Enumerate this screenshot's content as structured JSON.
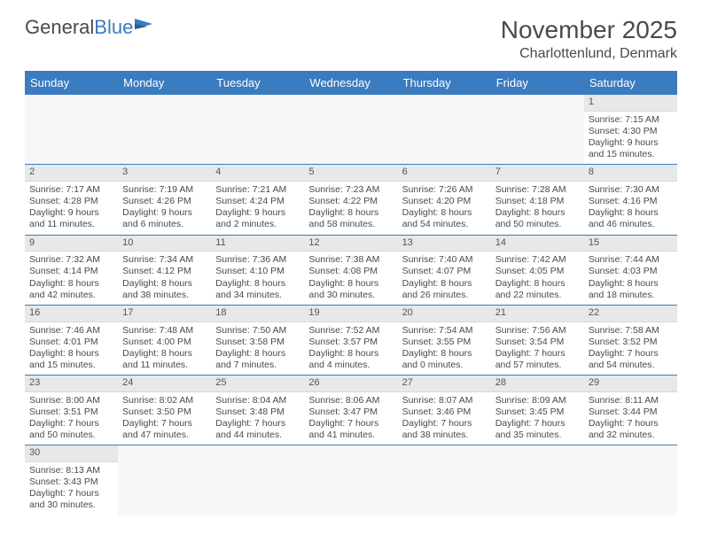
{
  "logo": {
    "text1": "General",
    "text2": "Blue"
  },
  "title": "November 2025",
  "location": "Charlottenlund, Denmark",
  "header_bg": "#3b7bbf",
  "day_names": [
    "Sunday",
    "Monday",
    "Tuesday",
    "Wednesday",
    "Thursday",
    "Friday",
    "Saturday"
  ],
  "weeks": [
    [
      null,
      null,
      null,
      null,
      null,
      null,
      {
        "n": "1",
        "sr": "Sunrise: 7:15 AM",
        "ss": "Sunset: 4:30 PM",
        "d1": "Daylight: 9 hours",
        "d2": "and 15 minutes."
      }
    ],
    [
      {
        "n": "2",
        "sr": "Sunrise: 7:17 AM",
        "ss": "Sunset: 4:28 PM",
        "d1": "Daylight: 9 hours",
        "d2": "and 11 minutes."
      },
      {
        "n": "3",
        "sr": "Sunrise: 7:19 AM",
        "ss": "Sunset: 4:26 PM",
        "d1": "Daylight: 9 hours",
        "d2": "and 6 minutes."
      },
      {
        "n": "4",
        "sr": "Sunrise: 7:21 AM",
        "ss": "Sunset: 4:24 PM",
        "d1": "Daylight: 9 hours",
        "d2": "and 2 minutes."
      },
      {
        "n": "5",
        "sr": "Sunrise: 7:23 AM",
        "ss": "Sunset: 4:22 PM",
        "d1": "Daylight: 8 hours",
        "d2": "and 58 minutes."
      },
      {
        "n": "6",
        "sr": "Sunrise: 7:26 AM",
        "ss": "Sunset: 4:20 PM",
        "d1": "Daylight: 8 hours",
        "d2": "and 54 minutes."
      },
      {
        "n": "7",
        "sr": "Sunrise: 7:28 AM",
        "ss": "Sunset: 4:18 PM",
        "d1": "Daylight: 8 hours",
        "d2": "and 50 minutes."
      },
      {
        "n": "8",
        "sr": "Sunrise: 7:30 AM",
        "ss": "Sunset: 4:16 PM",
        "d1": "Daylight: 8 hours",
        "d2": "and 46 minutes."
      }
    ],
    [
      {
        "n": "9",
        "sr": "Sunrise: 7:32 AM",
        "ss": "Sunset: 4:14 PM",
        "d1": "Daylight: 8 hours",
        "d2": "and 42 minutes."
      },
      {
        "n": "10",
        "sr": "Sunrise: 7:34 AM",
        "ss": "Sunset: 4:12 PM",
        "d1": "Daylight: 8 hours",
        "d2": "and 38 minutes."
      },
      {
        "n": "11",
        "sr": "Sunrise: 7:36 AM",
        "ss": "Sunset: 4:10 PM",
        "d1": "Daylight: 8 hours",
        "d2": "and 34 minutes."
      },
      {
        "n": "12",
        "sr": "Sunrise: 7:38 AM",
        "ss": "Sunset: 4:08 PM",
        "d1": "Daylight: 8 hours",
        "d2": "and 30 minutes."
      },
      {
        "n": "13",
        "sr": "Sunrise: 7:40 AM",
        "ss": "Sunset: 4:07 PM",
        "d1": "Daylight: 8 hours",
        "d2": "and 26 minutes."
      },
      {
        "n": "14",
        "sr": "Sunrise: 7:42 AM",
        "ss": "Sunset: 4:05 PM",
        "d1": "Daylight: 8 hours",
        "d2": "and 22 minutes."
      },
      {
        "n": "15",
        "sr": "Sunrise: 7:44 AM",
        "ss": "Sunset: 4:03 PM",
        "d1": "Daylight: 8 hours",
        "d2": "and 18 minutes."
      }
    ],
    [
      {
        "n": "16",
        "sr": "Sunrise: 7:46 AM",
        "ss": "Sunset: 4:01 PM",
        "d1": "Daylight: 8 hours",
        "d2": "and 15 minutes."
      },
      {
        "n": "17",
        "sr": "Sunrise: 7:48 AM",
        "ss": "Sunset: 4:00 PM",
        "d1": "Daylight: 8 hours",
        "d2": "and 11 minutes."
      },
      {
        "n": "18",
        "sr": "Sunrise: 7:50 AM",
        "ss": "Sunset: 3:58 PM",
        "d1": "Daylight: 8 hours",
        "d2": "and 7 minutes."
      },
      {
        "n": "19",
        "sr": "Sunrise: 7:52 AM",
        "ss": "Sunset: 3:57 PM",
        "d1": "Daylight: 8 hours",
        "d2": "and 4 minutes."
      },
      {
        "n": "20",
        "sr": "Sunrise: 7:54 AM",
        "ss": "Sunset: 3:55 PM",
        "d1": "Daylight: 8 hours",
        "d2": "and 0 minutes."
      },
      {
        "n": "21",
        "sr": "Sunrise: 7:56 AM",
        "ss": "Sunset: 3:54 PM",
        "d1": "Daylight: 7 hours",
        "d2": "and 57 minutes."
      },
      {
        "n": "22",
        "sr": "Sunrise: 7:58 AM",
        "ss": "Sunset: 3:52 PM",
        "d1": "Daylight: 7 hours",
        "d2": "and 54 minutes."
      }
    ],
    [
      {
        "n": "23",
        "sr": "Sunrise: 8:00 AM",
        "ss": "Sunset: 3:51 PM",
        "d1": "Daylight: 7 hours",
        "d2": "and 50 minutes."
      },
      {
        "n": "24",
        "sr": "Sunrise: 8:02 AM",
        "ss": "Sunset: 3:50 PM",
        "d1": "Daylight: 7 hours",
        "d2": "and 47 minutes."
      },
      {
        "n": "25",
        "sr": "Sunrise: 8:04 AM",
        "ss": "Sunset: 3:48 PM",
        "d1": "Daylight: 7 hours",
        "d2": "and 44 minutes."
      },
      {
        "n": "26",
        "sr": "Sunrise: 8:06 AM",
        "ss": "Sunset: 3:47 PM",
        "d1": "Daylight: 7 hours",
        "d2": "and 41 minutes."
      },
      {
        "n": "27",
        "sr": "Sunrise: 8:07 AM",
        "ss": "Sunset: 3:46 PM",
        "d1": "Daylight: 7 hours",
        "d2": "and 38 minutes."
      },
      {
        "n": "28",
        "sr": "Sunrise: 8:09 AM",
        "ss": "Sunset: 3:45 PM",
        "d1": "Daylight: 7 hours",
        "d2": "and 35 minutes."
      },
      {
        "n": "29",
        "sr": "Sunrise: 8:11 AM",
        "ss": "Sunset: 3:44 PM",
        "d1": "Daylight: 7 hours",
        "d2": "and 32 minutes."
      }
    ],
    [
      {
        "n": "30",
        "sr": "Sunrise: 8:13 AM",
        "ss": "Sunset: 3:43 PM",
        "d1": "Daylight: 7 hours",
        "d2": "and 30 minutes."
      },
      null,
      null,
      null,
      null,
      null,
      null
    ]
  ]
}
